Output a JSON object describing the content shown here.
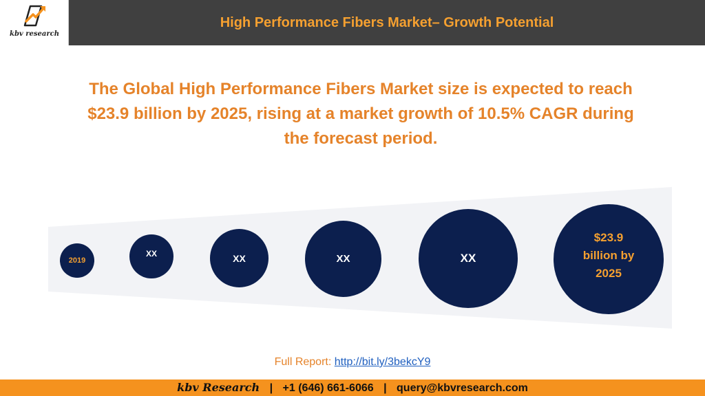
{
  "header": {
    "logo_text": "kbv research",
    "title": "High Performance Fibers Market– Growth Potential"
  },
  "headline": "The Global High Performance Fibers Market size is expected to reach $23.9 billion by 2025, rising at a market growth of 10.5% CAGR during the forecast period.",
  "circles": [
    {
      "label": "2019"
    },
    {
      "label": "XX"
    },
    {
      "label": "XX"
    },
    {
      "label": "XX"
    },
    {
      "label": "XX"
    },
    {
      "line1": "$23.9",
      "line2": "billion by",
      "line3": "2025"
    }
  ],
  "full_report": {
    "label": "Full Report:",
    "link_text": "http://bit.ly/3bekcY9"
  },
  "footer": {
    "brand": "kbv Research",
    "separator": "|",
    "phone": "+1 (646) 661-6066",
    "email": "query@kbvresearch.com"
  },
  "colors": {
    "header_bg": "#404040",
    "accent_orange": "#E5832A",
    "circle_navy": "#0C1F4E",
    "footer_orange": "#F5921E",
    "funnel_bg": "#F2F3F6"
  }
}
